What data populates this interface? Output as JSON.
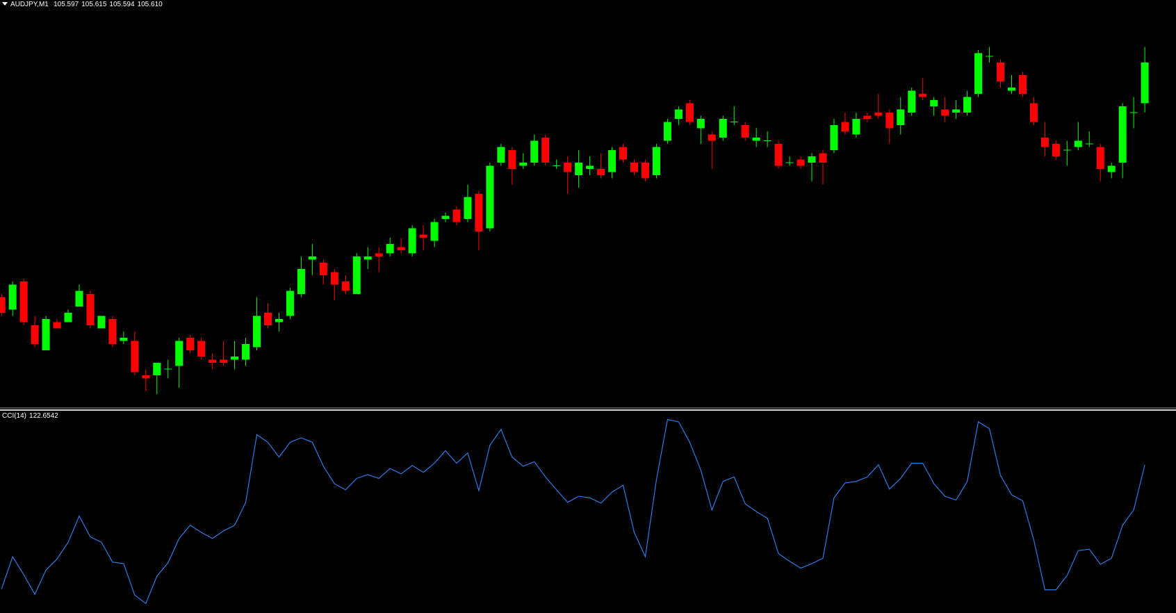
{
  "chart_data": [
    {
      "type": "candlestick",
      "title": "AUDJPY,M1",
      "header": [
        "105.597",
        "105.615",
        "105.594",
        "105.610"
      ],
      "up_color": "#00ff00",
      "down_color": "#ff0000",
      "ylim": [
        105.5,
        105.63
      ],
      "open": [
        105.535,
        105.531,
        105.54,
        105.526,
        105.518,
        105.527,
        105.527,
        105.532,
        105.536,
        105.525,
        105.528,
        105.521,
        105.521,
        105.51,
        105.51,
        105.512,
        105.513,
        105.522,
        105.521,
        105.515,
        105.515,
        105.515,
        105.515,
        105.519,
        105.53,
        105.527,
        105.529,
        105.536,
        105.547,
        105.546,
        105.543,
        105.54,
        105.536,
        105.547,
        105.549,
        105.549,
        105.551,
        105.549,
        105.555,
        105.553,
        105.56,
        105.563,
        105.56,
        105.568,
        105.557,
        105.578,
        105.582,
        105.577,
        105.578,
        105.586,
        105.577,
        105.578,
        105.574,
        105.576,
        105.576,
        105.575,
        105.583,
        105.578,
        105.578,
        105.574,
        105.585,
        105.592,
        105.597,
        105.589,
        105.587,
        105.586,
        105.591,
        105.59,
        105.585,
        105.585,
        105.584,
        105.578,
        105.579,
        105.578,
        105.581,
        105.582,
        105.591,
        105.587,
        105.593,
        105.594,
        105.594,
        105.59,
        105.594,
        105.6,
        105.596,
        105.595,
        105.594,
        105.594,
        105.6,
        105.612,
        105.61,
        105.601,
        105.606,
        105.597,
        105.586,
        105.584,
        105.582,
        105.583,
        105.584,
        105.583,
        105.575,
        105.578,
        105.594,
        105.597
      ],
      "high": [
        105.536,
        105.54,
        105.541,
        105.529,
        105.529,
        105.528,
        105.531,
        105.539,
        105.537,
        105.529,
        105.529,
        105.524,
        105.524,
        105.512,
        105.514,
        105.515,
        105.522,
        105.523,
        105.522,
        105.517,
        105.521,
        105.521,
        105.522,
        105.535,
        105.533,
        105.53,
        105.538,
        105.548,
        105.552,
        105.547,
        105.544,
        105.542,
        105.549,
        105.551,
        105.551,
        105.554,
        105.554,
        105.558,
        105.558,
        105.56,
        105.562,
        105.564,
        105.571,
        105.569,
        105.578,
        105.584,
        105.583,
        105.581,
        105.587,
        105.587,
        105.579,
        105.58,
        105.582,
        105.58,
        105.581,
        105.583,
        105.584,
        105.579,
        105.579,
        105.584,
        105.592,
        105.596,
        105.598,
        105.593,
        105.588,
        105.593,
        105.596,
        105.591,
        105.589,
        105.588,
        105.585,
        105.58,
        105.58,
        105.581,
        105.582,
        105.592,
        105.594,
        105.594,
        105.594,
        105.6,
        105.595,
        105.599,
        105.602,
        105.605,
        105.599,
        105.599,
        105.598,
        105.601,
        105.614,
        105.615,
        105.611,
        105.606,
        105.607,
        105.599,
        105.591,
        105.585,
        105.585,
        105.591,
        105.588,
        105.584,
        105.578,
        105.597,
        105.599,
        105.615
      ],
      "low": [
        105.529,
        105.529,
        105.526,
        105.519,
        105.518,
        105.525,
        105.527,
        105.532,
        105.525,
        105.525,
        105.519,
        105.52,
        105.51,
        105.505,
        105.504,
        105.509,
        105.506,
        105.517,
        105.515,
        105.512,
        105.513,
        105.512,
        105.513,
        105.518,
        105.525,
        105.524,
        105.528,
        105.535,
        105.542,
        105.539,
        105.534,
        105.536,
        105.536,
        105.544,
        105.543,
        105.548,
        105.549,
        105.548,
        105.55,
        105.551,
        105.559,
        105.558,
        105.559,
        105.55,
        105.556,
        105.577,
        105.571,
        105.576,
        105.577,
        105.577,
        105.576,
        105.568,
        105.57,
        105.574,
        105.573,
        105.573,
        105.578,
        105.574,
        105.572,
        105.573,
        105.584,
        105.59,
        105.59,
        105.584,
        105.576,
        105.585,
        105.59,
        105.585,
        105.583,
        105.583,
        105.576,
        105.577,
        105.576,
        105.572,
        105.571,
        105.581,
        105.587,
        105.586,
        105.591,
        105.592,
        105.584,
        105.587,
        105.593,
        105.598,
        105.593,
        105.591,
        105.592,
        105.593,
        105.599,
        105.61,
        105.602,
        105.6,
        105.599,
        105.59,
        105.58,
        105.579,
        105.577,
        105.582,
        105.583,
        105.572,
        105.573,
        105.573,
        105.589,
        105.594
      ],
      "close": [
        105.53,
        105.539,
        105.527,
        105.52,
        105.528,
        105.525,
        105.53,
        105.537,
        105.526,
        105.529,
        105.52,
        105.522,
        105.511,
        105.509,
        105.514,
        105.512,
        105.521,
        105.518,
        105.516,
        105.514,
        105.514,
        105.516,
        105.52,
        105.529,
        105.526,
        105.528,
        105.537,
        105.544,
        105.548,
        105.542,
        105.539,
        105.537,
        105.548,
        105.548,
        105.548,
        105.552,
        105.55,
        105.557,
        105.554,
        105.559,
        105.561,
        105.559,
        105.567,
        105.556,
        105.577,
        105.583,
        105.576,
        105.578,
        105.585,
        105.578,
        105.577,
        105.575,
        105.578,
        105.577,
        105.574,
        105.582,
        105.579,
        105.575,
        105.573,
        105.583,
        105.591,
        105.595,
        105.591,
        105.592,
        105.585,
        105.592,
        105.591,
        105.586,
        105.586,
        105.585,
        105.577,
        105.578,
        105.577,
        105.58,
        105.578,
        105.59,
        105.588,
        105.592,
        105.592,
        105.593,
        105.589,
        105.595,
        105.601,
        105.599,
        105.598,
        105.593,
        105.595,
        105.599,
        105.613,
        105.612,
        105.604,
        105.602,
        105.6,
        105.591,
        105.583,
        105.58,
        105.582,
        105.585,
        105.584,
        105.576,
        105.577,
        105.596,
        105.594,
        105.61
      ]
    },
    {
      "type": "line",
      "title": "CCI(14)",
      "color": "#2f7ae5",
      "ylim": [
        -267,
        265
      ],
      "values": [
        -204,
        -119,
        -166,
        -218,
        -154,
        -125,
        -81,
        -12,
        -67,
        -81,
        -133,
        -137,
        -220,
        -242,
        -170,
        -135,
        -71,
        -36,
        -55,
        -71,
        -51,
        -36,
        24,
        202,
        182,
        143,
        182,
        194,
        182,
        119,
        73,
        57,
        87,
        97,
        87,
        113,
        99,
        121,
        103,
        127,
        160,
        127,
        154,
        55,
        174,
        216,
        143,
        119,
        131,
        91,
        57,
        24,
        40,
        36,
        22,
        51,
        69,
        -55,
        -119,
        83,
        242,
        236,
        182,
        109,
        4,
        79,
        91,
        20,
        0,
        -18,
        -111,
        -131,
        -149,
        -137,
        -123,
        36,
        75,
        79,
        91,
        123,
        59,
        87,
        127,
        127,
        73,
        40,
        30,
        79,
        236,
        218,
        95,
        44,
        28,
        -75,
        -206,
        -206,
        -168,
        -103,
        -99,
        -139,
        -123,
        -36,
        4,
        122.6542
      ]
    }
  ]
}
